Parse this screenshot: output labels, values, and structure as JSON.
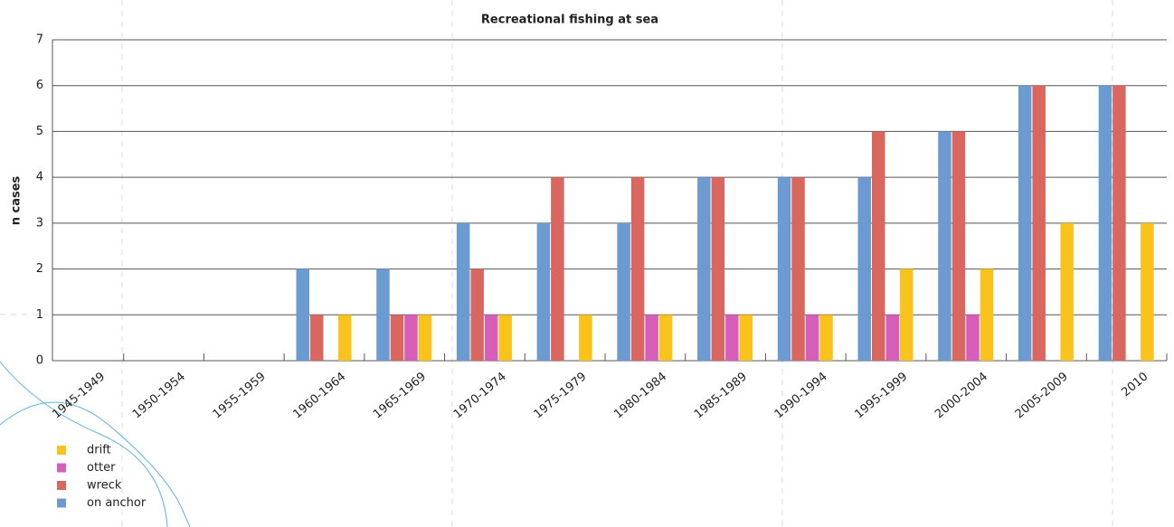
{
  "chart_data": {
    "type": "bar",
    "title": "Recreational fishing at sea",
    "y_label": "n cases",
    "categories": [
      "1945-1949",
      "1950-1954",
      "1955-1959",
      "1960-1964",
      "1965-1969",
      "1970-1974",
      "1975-1979",
      "1980-1984",
      "1985-1989",
      "1990-1994",
      "1995-1999",
      "2000-2004",
      "2005-2009",
      "2010"
    ],
    "series": [
      {
        "name": "on anchor",
        "color": "#6b9bd1",
        "values": [
          0,
          0,
          0,
          2,
          2,
          3,
          3,
          3,
          4,
          4,
          4,
          5,
          6,
          6
        ]
      },
      {
        "name": "wreck",
        "color": "#d9675f",
        "values": [
          0,
          0,
          0,
          1,
          1,
          2,
          4,
          4,
          4,
          4,
          5,
          5,
          6,
          6
        ]
      },
      {
        "name": "otter",
        "color": "#d65db8",
        "values": [
          0,
          0,
          0,
          0,
          1,
          1,
          0,
          1,
          1,
          1,
          1,
          1,
          0,
          0
        ]
      },
      {
        "name": "drift",
        "color": "#f9c31c",
        "values": [
          0,
          0,
          0,
          1,
          1,
          1,
          1,
          1,
          1,
          1,
          2,
          2,
          3,
          3
        ]
      }
    ],
    "ylim": [
      0,
      7
    ],
    "yticks": [
      0,
      1,
      2,
      3,
      4,
      5,
      6,
      7
    ],
    "grid": true
  }
}
